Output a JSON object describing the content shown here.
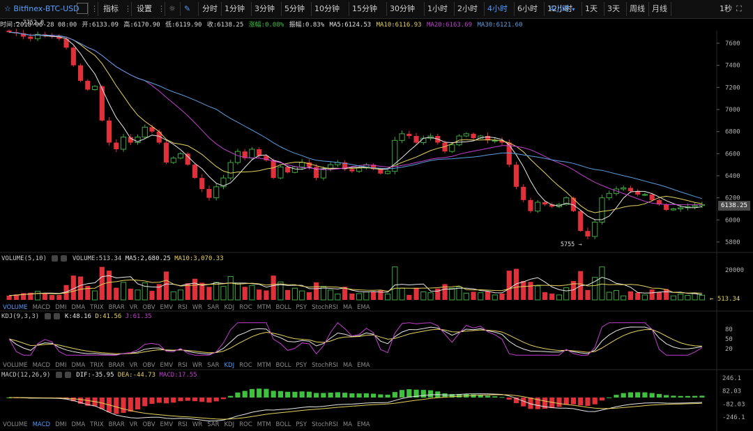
{
  "toolbar": {
    "symbol": "Bitfinex-BTC-USD",
    "indicator_label": "指标",
    "settings_label": "设置",
    "intervals": [
      "分时",
      "1分钟",
      "3分钟",
      "5分钟",
      "10分钟",
      "15分钟",
      "30分钟",
      "1小时",
      "2小时",
      "4小时",
      "6小时",
      "12小时",
      "1天",
      "3天",
      "周线",
      "月线"
    ],
    "active_interval": "4小时",
    "dropdown_label": "4小时",
    "refresh": "1秒"
  },
  "info_bar": {
    "time": "时间:2018-06-28 08:00",
    "open": "开:6133.09",
    "high": "高:6170.90",
    "low": "低:6119.90",
    "close": "收:6138.25",
    "change": "涨幅:0.08%",
    "amplitude": "振幅:0.83%",
    "ma5": "MA5:6124.53",
    "ma10": "MA10:6116.93",
    "ma20": "MA20:6163.69",
    "ma30": "MA30:6121.60"
  },
  "volume_info": {
    "title": "VOLUME(5,10)",
    "vol": "VOLUME:513.34",
    "ma5": "MA5:2,680.25",
    "ma10": "MA10:3,070.33"
  },
  "kdj_info": {
    "title": "KDJ(9,3,3)",
    "k": "K:48.16",
    "d": "D:41.56",
    "j": "J:61.35"
  },
  "macd_info": {
    "title": "MACD(12,26,9)",
    "dif": "DIF:-35.95",
    "dea": "DEA:-44.73",
    "macd": "MACD:17.55"
  },
  "indicator_tabs": [
    "VOLUME",
    "MACD",
    "DMI",
    "DMA",
    "TRIX",
    "BRAR",
    "VR",
    "OBV",
    "EMV",
    "RSI",
    "WR",
    "SAR",
    "KDJ",
    "ROC",
    "MTM",
    "BOLL",
    "PSY",
    "StochRSI",
    "MA",
    "EMA"
  ],
  "price_tag": "6138.25",
  "volume_tag": "← 513.34",
  "colors": {
    "up": "#3fa83f",
    "down": "#e0303a",
    "ma5": "#e8e8e8",
    "ma10": "#e5d25f",
    "ma20": "#c23fd0",
    "ma30": "#5a9fe0",
    "accent": "#4d9bff"
  },
  "chart_data": {
    "type": "candlestick",
    "price_axis": {
      "ticks": [
        5800,
        6000,
        6200,
        6400,
        6600,
        6800,
        7000,
        7200,
        7400,
        7600
      ]
    },
    "high_label": "← 7752.8",
    "low_label": "5755 →",
    "close_path": [
      7700,
      7690,
      7660,
      7640,
      7680,
      7670,
      7660,
      7640,
      7560,
      7400,
      7260,
      7180,
      7210,
      6900,
      6700,
      6640,
      6750,
      6700,
      6750,
      6840,
      6800,
      6700,
      6520,
      6560,
      6600,
      6500,
      6380,
      6280,
      6200,
      6300,
      6380,
      6520,
      6620,
      6560,
      6640,
      6580,
      6540,
      6380,
      6480,
      6430,
      6480,
      6520,
      6480,
      6380,
      6460,
      6500,
      6520,
      6460,
      6440,
      6470,
      6500,
      6460,
      6420,
      6440,
      6720,
      6780,
      6760,
      6700,
      6740,
      6760,
      6700,
      6620,
      6680,
      6760,
      6780,
      6740,
      6760,
      6720,
      6720,
      6700,
      6500,
      6300,
      6180,
      6080,
      6160,
      6140,
      6120,
      6140,
      6200,
      6080,
      5900,
      5850,
      5980,
      6200,
      6240,
      6280,
      6290,
      6260,
      6230,
      6230,
      6180,
      6140,
      6090,
      6100,
      6110,
      6120,
      6130,
      6138
    ],
    "volume_axis": {
      "ticks": [
        20000
      ]
    },
    "kdj_axis": {
      "ticks": [
        20,
        50,
        80
      ]
    },
    "macd_axis": {
      "ticks": [
        -246.1,
        -82.03,
        82.03,
        246.1
      ]
    }
  }
}
